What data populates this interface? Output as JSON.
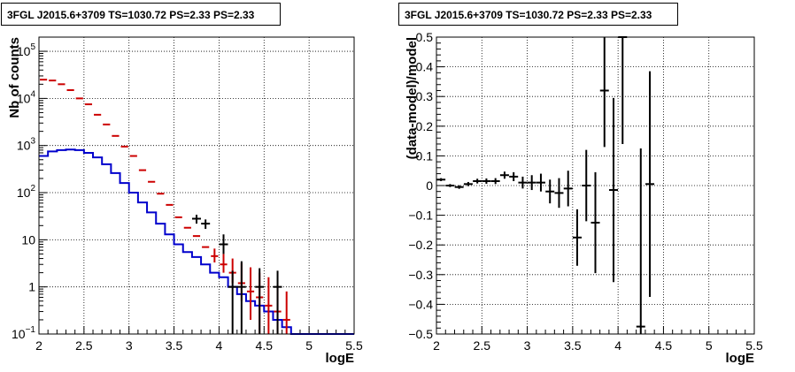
{
  "chart_data": [
    {
      "type": "step-histogram",
      "title": "3FGL J2015.6+3709 TS=1030.72 PS=2.33 PS=2.33",
      "xlabel": "logE",
      "ylabel": "Nb of counts",
      "xlim": [
        2,
        5.5
      ],
      "ylim": [
        0.1,
        200000
      ],
      "yscale": "log",
      "grid": true,
      "x_ticks": [
        "2",
        "2.5",
        "3",
        "3.5",
        "4",
        "4.5",
        "5",
        "5.5"
      ],
      "y_ticks": [
        "10^-1",
        "1",
        "10",
        "10^2",
        "10^3",
        "10^4",
        "10^5"
      ],
      "bin_edges": [
        2.0,
        2.1,
        2.2,
        2.3,
        2.4,
        2.5,
        2.6,
        2.7,
        2.8,
        2.9,
        3.0,
        3.1,
        3.2,
        3.3,
        3.4,
        3.5,
        3.6,
        3.7,
        3.8,
        3.9,
        4.0,
        4.1,
        4.2,
        4.3,
        4.4,
        4.5,
        4.6,
        4.7,
        4.8,
        4.9,
        5.0,
        5.1,
        5.2,
        5.3,
        5.4,
        5.5
      ],
      "series": [
        {
          "style": "step",
          "color": "#0000cc",
          "values": [
            600,
            750,
            800,
            820,
            800,
            700,
            560,
            400,
            260,
            160,
            100,
            62,
            38,
            22,
            13,
            8,
            5.5,
            4.3,
            3.0,
            2.0,
            1.6,
            1.0,
            0.7,
            0.5,
            0.4,
            0.3,
            0.2,
            0.14,
            0.1,
            0.1,
            0.1,
            0.1,
            0.1,
            0.1,
            0.1
          ]
        },
        {
          "style": "markers",
          "color": "#cc0000",
          "values": [
            25000,
            24000,
            20000,
            15000,
            10000,
            7500,
            4500,
            2800,
            1600,
            950,
            600,
            300,
            170,
            95,
            55,
            30,
            18,
            12,
            7,
            4.5,
            3.0,
            2.0,
            1.2,
            0.8,
            0.6,
            0.4,
            0.3,
            0.2
          ],
          "err_low": [
            0,
            0,
            0,
            0,
            0,
            0,
            0,
            0,
            0,
            0,
            0,
            0,
            0,
            0,
            0,
            0,
            0,
            0,
            0,
            1.2,
            1.0,
            0.8,
            0.7,
            0.6,
            0.5,
            0.4,
            0.3,
            0.2
          ],
          "err_high": [
            0,
            0,
            0,
            0,
            0,
            0,
            0,
            0,
            0,
            0,
            0,
            0,
            0,
            0,
            0,
            0,
            0,
            0,
            0,
            2.0,
            2.0,
            2.0,
            2.0,
            1.8,
            1.4,
            1.2,
            0.8,
            0.6
          ]
        },
        {
          "style": "errorbars",
          "color": "#000000",
          "x": [
            3.75,
            3.85,
            4.05,
            4.15,
            4.25,
            4.45,
            4.65
          ],
          "values": [
            28,
            22,
            8,
            1,
            1,
            1,
            1
          ],
          "err_low": [
            6,
            5,
            3,
            0.9,
            0.9,
            0.9,
            0.9
          ],
          "err_high": [
            6,
            5,
            5,
            1.2,
            2.5,
            1.5,
            1.2
          ]
        }
      ]
    },
    {
      "type": "errorbar-scatter",
      "title": "3FGL J2015.6+3709 TS=1030.72 PS=2.33 PS=2.33",
      "xlabel": "logE",
      "ylabel": "(data-model)/model",
      "xlim": [
        2,
        5.5
      ],
      "ylim": [
        -0.5,
        0.5
      ],
      "grid": true,
      "x_ticks": [
        "2",
        "2.5",
        "3",
        "3.5",
        "4",
        "4.5",
        "5",
        "5.5"
      ],
      "y_ticks": [
        "−0.5",
        "−0.4",
        "−0.3",
        "−0.2",
        "−0.1",
        "0",
        "0.1",
        "0.2",
        "0.3",
        "0.4",
        "0.5"
      ],
      "series": [
        {
          "color": "#000000",
          "x": [
            2.05,
            2.15,
            2.25,
            2.35,
            2.45,
            2.55,
            2.65,
            2.75,
            2.85,
            2.95,
            3.05,
            3.15,
            3.25,
            3.35,
            3.45,
            3.55,
            3.65,
            3.75,
            3.85,
            3.95,
            4.05,
            4.25,
            4.35
          ],
          "y": [
            0.02,
            0.0,
            -0.005,
            0.005,
            0.015,
            0.015,
            0.015,
            0.035,
            0.03,
            0.01,
            0.01,
            0.01,
            -0.02,
            -0.025,
            -0.01,
            -0.175,
            0.0,
            -0.125,
            0.32,
            -0.015,
            0.5,
            -0.475,
            0.005
          ],
          "err": [
            0.005,
            0.005,
            0.006,
            0.007,
            0.008,
            0.009,
            0.01,
            0.012,
            0.015,
            0.02,
            0.025,
            0.03,
            0.04,
            0.05,
            0.06,
            0.095,
            0.12,
            0.17,
            0.19,
            0.31,
            0.36,
            0.6,
            0.38
          ]
        }
      ]
    }
  ]
}
